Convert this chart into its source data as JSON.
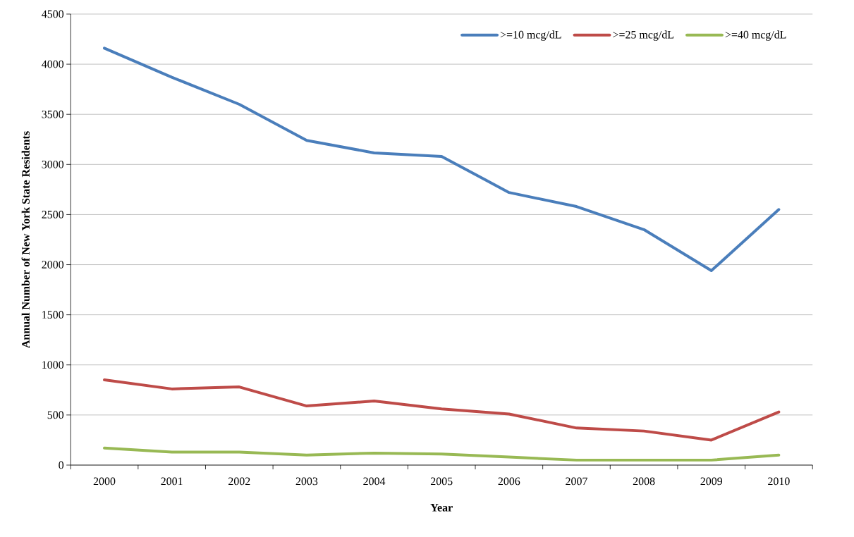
{
  "chart_data": {
    "type": "line",
    "xlabel": "Year",
    "ylabel": "Annual  Number of New York State Residents",
    "categories": [
      "2000",
      "2001",
      "2002",
      "2003",
      "2004",
      "2005",
      "2006",
      "2007",
      "2008",
      "2009",
      "2010"
    ],
    "series": [
      {
        "name": ">=10 mcg/dL",
        "color": "#4a7ebb",
        "values": [
          4160,
          3870,
          3600,
          3240,
          3115,
          3080,
          2720,
          2580,
          2350,
          1940,
          2550
        ]
      },
      {
        "name": ">=25 mcg/dL",
        "color": "#be4b48",
        "values": [
          850,
          760,
          780,
          590,
          640,
          560,
          510,
          370,
          340,
          250,
          530
        ]
      },
      {
        "name": ">=40 mcg/dL",
        "color": "#98b954",
        "values": [
          170,
          130,
          130,
          100,
          120,
          110,
          80,
          50,
          50,
          50,
          100
        ]
      }
    ],
    "ylim": [
      0,
      4500
    ],
    "yticks": [
      0,
      500,
      1000,
      1500,
      2000,
      2500,
      3000,
      3500,
      4000,
      4500
    ],
    "grid": "y",
    "legend": "top right",
    "marker": "none",
    "line_style": "solid"
  }
}
